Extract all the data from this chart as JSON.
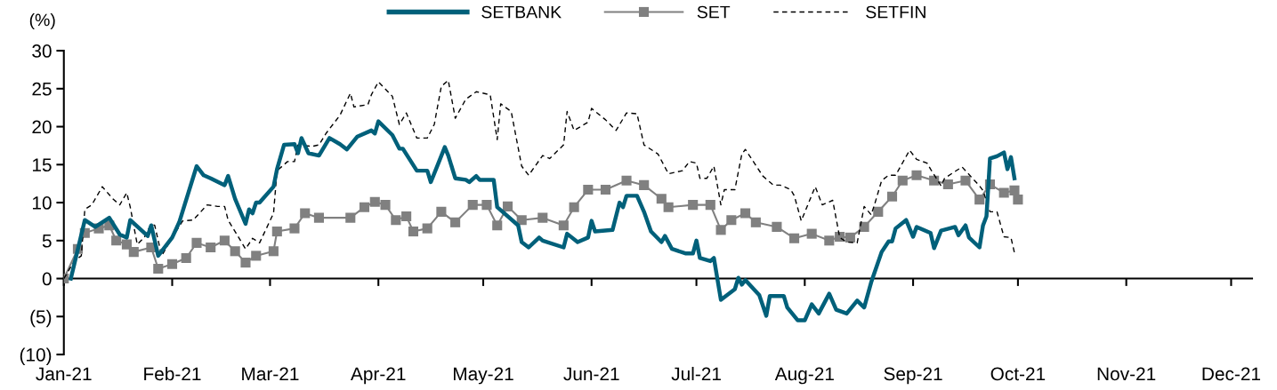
{
  "chart_data": {
    "type": "line",
    "ylabel": "(%)",
    "legend": "top",
    "xlim": [
      "2021-01-01",
      "2021-12-07"
    ],
    "xticks": [
      {
        "value": "2021-01-01",
        "label": "Jan-21"
      },
      {
        "value": "2021-02-01",
        "label": "Feb-21"
      },
      {
        "value": "2021-03-01",
        "label": "Mar-21"
      },
      {
        "value": "2021-04-01",
        "label": "Apr-21"
      },
      {
        "value": "2021-05-01",
        "label": "May-21"
      },
      {
        "value": "2021-06-01",
        "label": "Jun-21"
      },
      {
        "value": "2021-07-01",
        "label": "Jul-21"
      },
      {
        "value": "2021-08-01",
        "label": "Aug-21"
      },
      {
        "value": "2021-09-01",
        "label": "Sep-21"
      },
      {
        "value": "2021-10-01",
        "label": "Oct-21"
      },
      {
        "value": "2021-11-01",
        "label": "Nov-21"
      },
      {
        "value": "2021-12-01",
        "label": "Dec-21"
      }
    ],
    "ylim": [
      -10,
      30
    ],
    "yticks": [
      {
        "value": -10,
        "label": "(10)"
      },
      {
        "value": -5,
        "label": "(5)"
      },
      0,
      5,
      10,
      15,
      20,
      25,
      30
    ],
    "series": [
      {
        "name": "SETBANK",
        "color": "#00607a",
        "marker": "none",
        "line_style": "solid",
        "x": [
          "2021-01-03",
          "2021-01-07",
          "2021-01-10",
          "2021-01-14",
          "2021-01-17",
          "2021-01-19",
          "2021-01-20",
          "2021-01-25",
          "2021-01-26",
          "2021-01-28",
          "2021-02-01",
          "2021-02-03",
          "2021-02-08",
          "2021-02-10",
          "2021-02-12",
          "2021-02-16",
          "2021-02-17",
          "2021-02-19",
          "2021-02-22",
          "2021-02-23",
          "2021-02-24",
          "2021-02-25",
          "2021-02-26",
          "2021-03-02",
          "2021-03-03",
          "2021-03-05",
          "2021-03-08",
          "2021-03-09",
          "2021-03-10",
          "2021-03-12",
          "2021-03-15",
          "2021-03-18",
          "2021-03-21",
          "2021-03-23",
          "2021-03-26",
          "2021-03-30",
          "2021-03-31",
          "2021-04-01",
          "2021-04-05",
          "2021-04-07",
          "2021-04-08",
          "2021-04-12",
          "2021-04-15",
          "2021-04-16",
          "2021-04-18",
          "2021-04-20",
          "2021-04-21",
          "2021-04-23",
          "2021-04-26",
          "2021-04-27",
          "2021-04-29",
          "2021-04-30",
          "2021-05-04",
          "2021-05-05",
          "2021-05-11",
          "2021-05-12",
          "2021-05-14",
          "2021-05-17",
          "2021-05-18",
          "2021-05-24",
          "2021-05-25",
          "2021-05-28",
          "2021-05-31",
          "2021-06-01",
          "2021-06-02",
          "2021-06-07",
          "2021-06-09",
          "2021-06-10",
          "2021-06-11",
          "2021-06-14",
          "2021-06-16",
          "2021-06-18",
          "2021-06-21",
          "2021-06-22",
          "2021-06-24",
          "2021-06-28",
          "2021-06-30",
          "2021-07-01",
          "2021-07-02",
          "2021-07-05",
          "2021-07-06",
          "2021-07-08",
          "2021-07-12",
          "2021-07-13",
          "2021-07-14",
          "2021-07-15",
          "2021-07-19",
          "2021-07-21",
          "2021-07-22",
          "2021-07-26",
          "2021-07-27",
          "2021-07-30",
          "2021-08-01",
          "2021-08-03",
          "2021-08-05",
          "2021-08-08",
          "2021-08-10",
          "2021-08-13",
          "2021-08-16",
          "2021-08-18",
          "2021-08-20",
          "2021-08-23",
          "2021-08-25",
          "2021-08-26",
          "2021-08-27",
          "2021-08-30",
          "2021-09-01",
          "2021-09-02",
          "2021-09-06",
          "2021-09-07",
          "2021-09-09",
          "2021-09-13",
          "2021-09-14",
          "2021-09-16",
          "2021-09-17",
          "2021-09-20",
          "2021-09-21",
          "2021-09-22",
          "2021-09-23",
          "2021-09-25",
          "2021-09-27",
          "2021-09-28",
          "2021-09-29",
          "2021-09-30"
        ],
        "values": [
          0,
          7.7,
          6.8,
          8,
          5.8,
          5.4,
          7.7,
          5.6,
          7,
          3,
          5.4,
          7.4,
          14.8,
          13.6,
          13.2,
          12.3,
          13.5,
          10.5,
          7.2,
          9.1,
          8.6,
          10,
          10,
          12.1,
          14.4,
          17.6,
          17.7,
          16.5,
          18.5,
          16.5,
          16.2,
          18.5,
          17.7,
          17,
          18.7,
          19.5,
          19.1,
          20.7,
          18.9,
          17.1,
          17.1,
          14.2,
          14.2,
          12.7,
          15,
          17.3,
          16.2,
          13.2,
          13,
          12.7,
          13.5,
          13,
          13,
          9.4,
          7,
          4.8,
          4.1,
          5.4,
          5,
          4.1,
          5.9,
          4.8,
          5.4,
          7.6,
          6.2,
          6.4,
          10,
          9.4,
          10.9,
          10.9,
          8.8,
          6.2,
          4.8,
          5.6,
          3.9,
          3.3,
          3.3,
          5,
          2.7,
          2.3,
          2.7,
          -2.8,
          -1.4,
          0.1,
          -0.8,
          -0.2,
          -2.2,
          -4.9,
          -2.3,
          -2.3,
          -3.8,
          -5.5,
          -5.5,
          -3.4,
          -4.6,
          -2,
          -4.1,
          -4.6,
          -2.9,
          -3.8,
          -0.5,
          3.5,
          4.9,
          4.9,
          6.6,
          7.7,
          5.5,
          6.8,
          6,
          4,
          6.3,
          6.8,
          5.7,
          7,
          5.4,
          4.1,
          7,
          8.2,
          15.8,
          16.1,
          16.6,
          14.4,
          16,
          13.2
        ]
      },
      {
        "name": "SET",
        "color": "#808080",
        "marker": "square",
        "line_style": "solid",
        "x": [
          "2021-01-01",
          "2021-01-05",
          "2021-01-07",
          "2021-01-11",
          "2021-01-14",
          "2021-01-16",
          "2021-01-19",
          "2021-01-21",
          "2021-01-26",
          "2021-01-28",
          "2021-02-01",
          "2021-02-05",
          "2021-02-08",
          "2021-02-12",
          "2021-02-16",
          "2021-02-19",
          "2021-02-22",
          "2021-02-25",
          "2021-03-02",
          "2021-03-03",
          "2021-03-08",
          "2021-03-11",
          "2021-03-15",
          "2021-03-24",
          "2021-03-28",
          "2021-03-31",
          "2021-04-03",
          "2021-04-06",
          "2021-04-09",
          "2021-04-11",
          "2021-04-15",
          "2021-04-19",
          "2021-04-23",
          "2021-04-28",
          "2021-05-02",
          "2021-05-05",
          "2021-05-08",
          "2021-05-12",
          "2021-05-18",
          "2021-05-24",
          "2021-05-27",
          "2021-05-31",
          "2021-06-05",
          "2021-06-11",
          "2021-06-16",
          "2021-06-21",
          "2021-06-23",
          "2021-06-30",
          "2021-07-05",
          "2021-07-08",
          "2021-07-11",
          "2021-07-15",
          "2021-07-18",
          "2021-07-24",
          "2021-07-29",
          "2021-08-03",
          "2021-08-08",
          "2021-08-11",
          "2021-08-14",
          "2021-08-18",
          "2021-08-22",
          "2021-08-26",
          "2021-08-29",
          "2021-09-02",
          "2021-09-07",
          "2021-09-11",
          "2021-09-16",
          "2021-09-20",
          "2021-09-23",
          "2021-09-27",
          "2021-09-30",
          "2021-10-01"
        ],
        "values": [
          0,
          3.9,
          6,
          6.6,
          7,
          5,
          4.5,
          3.5,
          4.1,
          1.3,
          1.9,
          2.7,
          4.7,
          4.1,
          5,
          3.6,
          2.1,
          3,
          3.6,
          6.2,
          6.6,
          8.6,
          8,
          8,
          9.4,
          10.1,
          9.7,
          7.7,
          8.2,
          6.2,
          6.6,
          8.8,
          7.4,
          9.7,
          9.7,
          7,
          9.5,
          7.7,
          8,
          7,
          9.4,
          11.7,
          11.7,
          12.9,
          12.3,
          10.5,
          9.4,
          9.7,
          9.7,
          6.4,
          7.7,
          8.6,
          7.4,
          6.8,
          5.3,
          5.9,
          5,
          5.5,
          5.4,
          6.8,
          8.8,
          10.8,
          12.9,
          13.6,
          12.9,
          12.4,
          12.9,
          10.4,
          12.4,
          11.3,
          11.6,
          10.4
        ]
      },
      {
        "name": "SETFIN",
        "color": "#000000",
        "marker": "none",
        "line_style": "dashed",
        "x": [
          "2021-01-01",
          "2021-01-04",
          "2021-01-06",
          "2021-01-07",
          "2021-01-09",
          "2021-01-12",
          "2021-01-15",
          "2021-01-17",
          "2021-01-19",
          "2021-01-20",
          "2021-01-22",
          "2021-01-24",
          "2021-01-26",
          "2021-01-27",
          "2021-01-29",
          "2021-02-01",
          "2021-02-04",
          "2021-02-07",
          "2021-02-11",
          "2021-02-14",
          "2021-02-16",
          "2021-02-17",
          "2021-02-22",
          "2021-02-24",
          "2021-02-26",
          "2021-03-02",
          "2021-03-03",
          "2021-03-06",
          "2021-03-08",
          "2021-03-09",
          "2021-03-13",
          "2021-03-15",
          "2021-03-17",
          "2021-03-21",
          "2021-03-24",
          "2021-03-25",
          "2021-03-29",
          "2021-03-30",
          "2021-04-01",
          "2021-04-05",
          "2021-04-07",
          "2021-04-09",
          "2021-04-12",
          "2021-04-15",
          "2021-04-17",
          "2021-04-19",
          "2021-04-21",
          "2021-04-23",
          "2021-04-26",
          "2021-04-29",
          "2021-05-03",
          "2021-05-05",
          "2021-05-06",
          "2021-05-09",
          "2021-05-12",
          "2021-05-14",
          "2021-05-18",
          "2021-05-20",
          "2021-05-24",
          "2021-05-25",
          "2021-05-27",
          "2021-05-31",
          "2021-06-01",
          "2021-06-05",
          "2021-06-08",
          "2021-06-11",
          "2021-06-14",
          "2021-06-16",
          "2021-06-20",
          "2021-06-23",
          "2021-06-27",
          "2021-06-29",
          "2021-07-01",
          "2021-07-02",
          "2021-07-04",
          "2021-07-06",
          "2021-07-08",
          "2021-07-09",
          "2021-07-12",
          "2021-07-14",
          "2021-07-15",
          "2021-07-17",
          "2021-07-20",
          "2021-07-23",
          "2021-07-25",
          "2021-07-28",
          "2021-07-29",
          "2021-07-31",
          "2021-08-04",
          "2021-08-06",
          "2021-08-09",
          "2021-08-11",
          "2021-08-13",
          "2021-08-16",
          "2021-08-18",
          "2021-08-20",
          "2021-08-21",
          "2021-08-23",
          "2021-08-25",
          "2021-08-27",
          "2021-08-31",
          "2021-09-02",
          "2021-09-05",
          "2021-09-06",
          "2021-09-09",
          "2021-09-10",
          "2021-09-15",
          "2021-09-18",
          "2021-09-20",
          "2021-09-21",
          "2021-09-23",
          "2021-09-25",
          "2021-09-27",
          "2021-09-29",
          "2021-09-30"
        ],
        "values": [
          0,
          2.3,
          3,
          9.1,
          9.7,
          12.1,
          10.5,
          9.7,
          11.3,
          9.4,
          4.5,
          5.4,
          7.2,
          7,
          3,
          5.4,
          7.6,
          7.7,
          9.7,
          9.5,
          9.5,
          7.7,
          3.9,
          5.3,
          4.7,
          8.6,
          14.2,
          15.4,
          15.4,
          17.6,
          17.4,
          17.6,
          19.1,
          21.5,
          24.4,
          22.6,
          22.9,
          24.2,
          25.9,
          24,
          20.3,
          21.8,
          18.5,
          18.5,
          20.3,
          25.3,
          26.1,
          21.1,
          23.6,
          24.6,
          24.2,
          18.3,
          23,
          22,
          14.8,
          13.6,
          16.2,
          15.8,
          17.6,
          22,
          19.5,
          20.6,
          22.4,
          20.9,
          19.5,
          21.8,
          21.7,
          17.6,
          16.4,
          13.8,
          14.2,
          15.4,
          15.2,
          13.2,
          13.2,
          14.8,
          9.7,
          11.7,
          11.7,
          16.4,
          17,
          15.6,
          13.5,
          12.3,
          12.3,
          11.7,
          10.9,
          7.6,
          12.1,
          9.7,
          10.3,
          5.4,
          4.8,
          4.7,
          9.5,
          8.4,
          9.8,
          12.9,
          13.6,
          13.6,
          16.9,
          15.7,
          15.2,
          14.4,
          12.2,
          13.2,
          14.7,
          13.2,
          12.2,
          11.6,
          8.8,
          8.8,
          5.5,
          5.4,
          3.4
        ]
      }
    ]
  }
}
